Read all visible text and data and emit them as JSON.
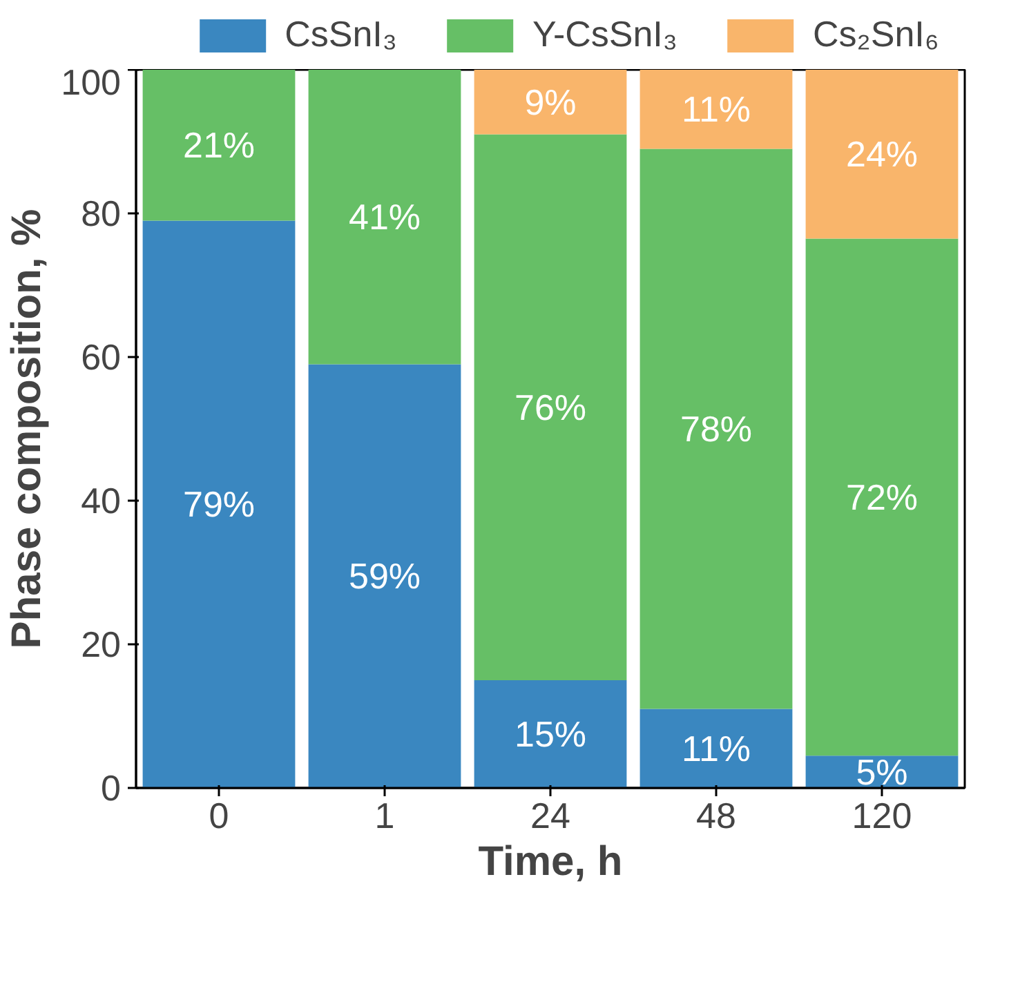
{
  "chart_data": {
    "type": "bar",
    "stacked": true,
    "xlabel": "Time, h",
    "ylabel": "Phase composition, %",
    "categories": [
      "0",
      "1",
      "24",
      "48",
      "120"
    ],
    "ylim": [
      0,
      100
    ],
    "yticks": [
      0,
      20,
      40,
      60,
      80,
      100
    ],
    "grid": false,
    "legend": "top",
    "series": [
      {
        "name": "CsSnI₃",
        "color": "#3a87c0",
        "values": [
          79,
          59,
          15,
          11,
          4.5
        ],
        "value_labels": [
          "79%",
          "59%",
          "15%",
          "11%",
          "5%"
        ]
      },
      {
        "name": "Y-CsSnI₃",
        "color": "#66bf66",
        "values": [
          21,
          41,
          76,
          78,
          72
        ],
        "value_labels": [
          "21%",
          "41%",
          "76%",
          "78%",
          "72%"
        ]
      },
      {
        "name": "Cs₂SnI₆",
        "color": "#f9b56b",
        "values": [
          0,
          0,
          9,
          11,
          23.5
        ],
        "value_labels": [
          null,
          null,
          "9%",
          "11%",
          "24%"
        ]
      }
    ]
  }
}
